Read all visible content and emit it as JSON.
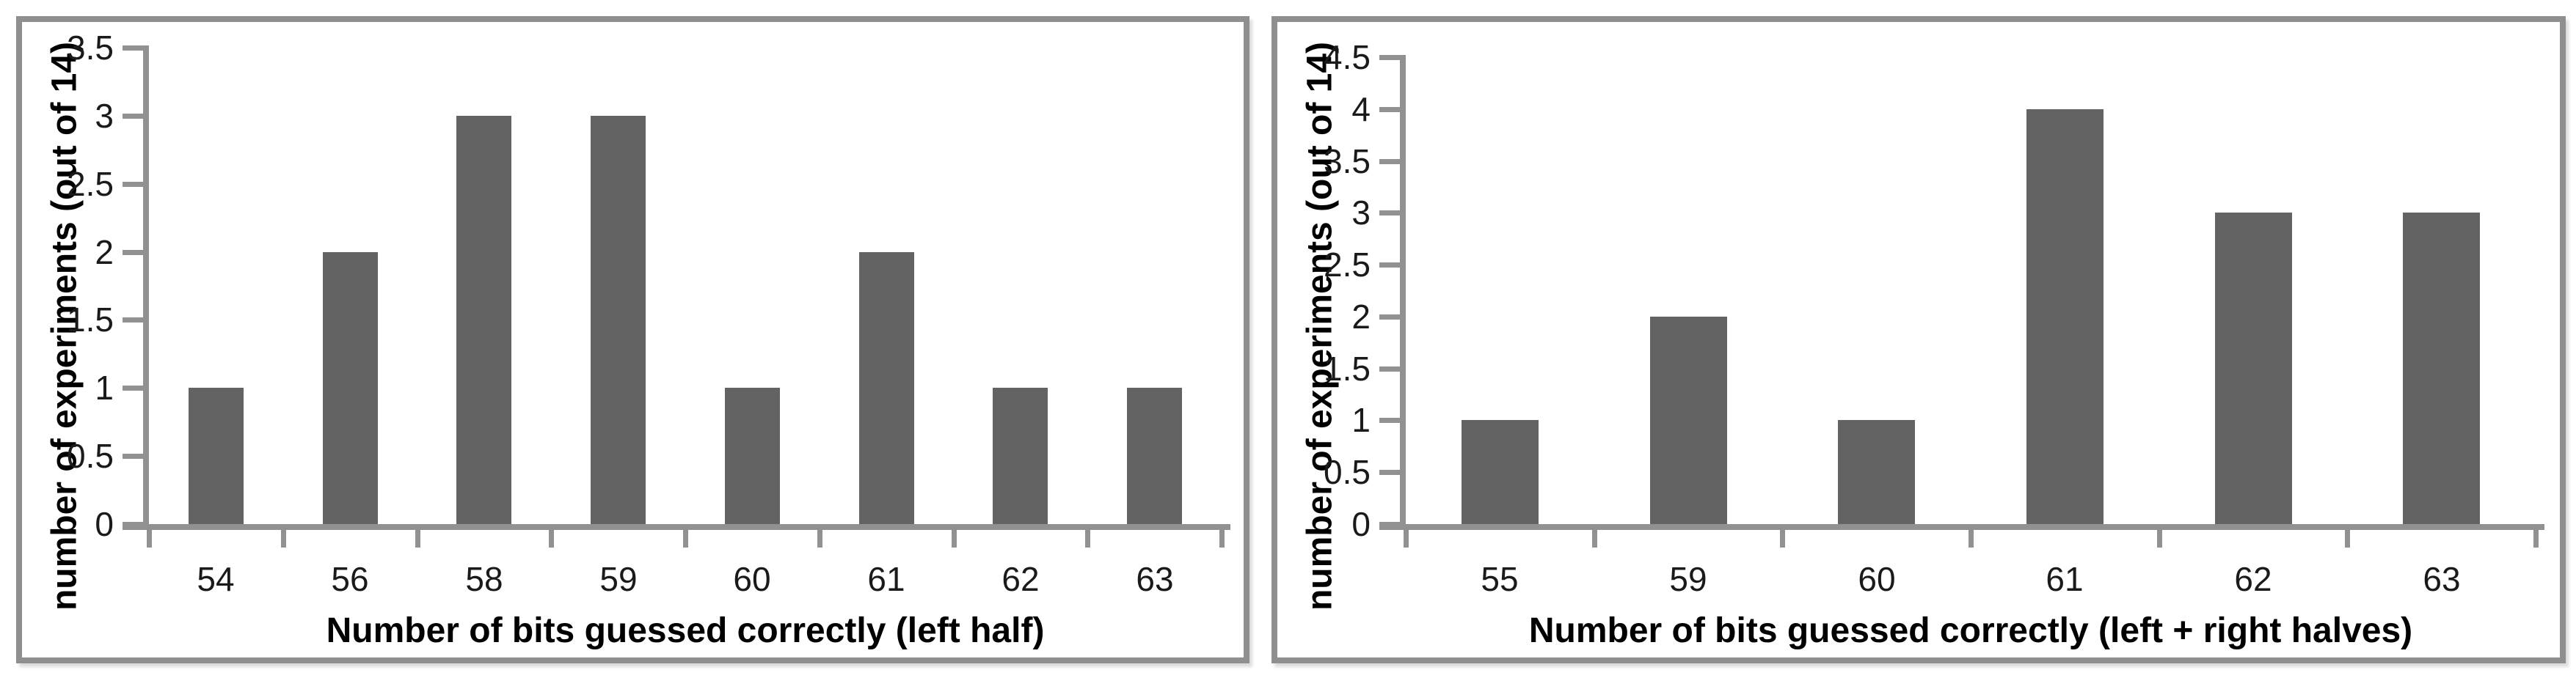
{
  "figure": {
    "description_left_panel": "histogram of correctly guessed bits (left half)",
    "description_right_panel": "histogram of correctly guessed bits (left + right halves)"
  },
  "colors": {
    "bar": "#636363",
    "panel_border": "#8f8f8f",
    "axis": "#919191",
    "tick_label_text": "#1a1a1a",
    "title_text": "#000000",
    "background": "#ffffff"
  },
  "chart_data": [
    {
      "type": "bar",
      "title": "",
      "categories": [
        "54",
        "56",
        "58",
        "59",
        "60",
        "61",
        "62",
        "63"
      ],
      "values": [
        1,
        2,
        3,
        3,
        1,
        2,
        1,
        1
      ],
      "xlabel": "Number of bits guessed correctly (left half)",
      "ylabel": "number of experiments (out of 14)",
      "ylim": [
        0,
        3.5
      ],
      "ytick_labels": [
        "0",
        "0.5",
        "1",
        "1.5",
        "2",
        "2.5",
        "3",
        "3.5"
      ],
      "grid": false,
      "legend": "none",
      "bar_color": "#636363"
    },
    {
      "type": "bar",
      "title": "",
      "categories": [
        "55",
        "59",
        "60",
        "61",
        "62",
        "63"
      ],
      "values": [
        1,
        2,
        1,
        4,
        3,
        3
      ],
      "xlabel": "Number of bits guessed correctly (left + right halves)",
      "ylabel": "number of experiments (out of 14)",
      "ylim": [
        0,
        4.5
      ],
      "ytick_labels": [
        "0",
        "0.5",
        "1",
        "1.5",
        "2",
        "2.5",
        "3",
        "3.5",
        "4",
        "4.5"
      ],
      "grid": false,
      "legend": "none",
      "bar_color": "#636363"
    }
  ]
}
